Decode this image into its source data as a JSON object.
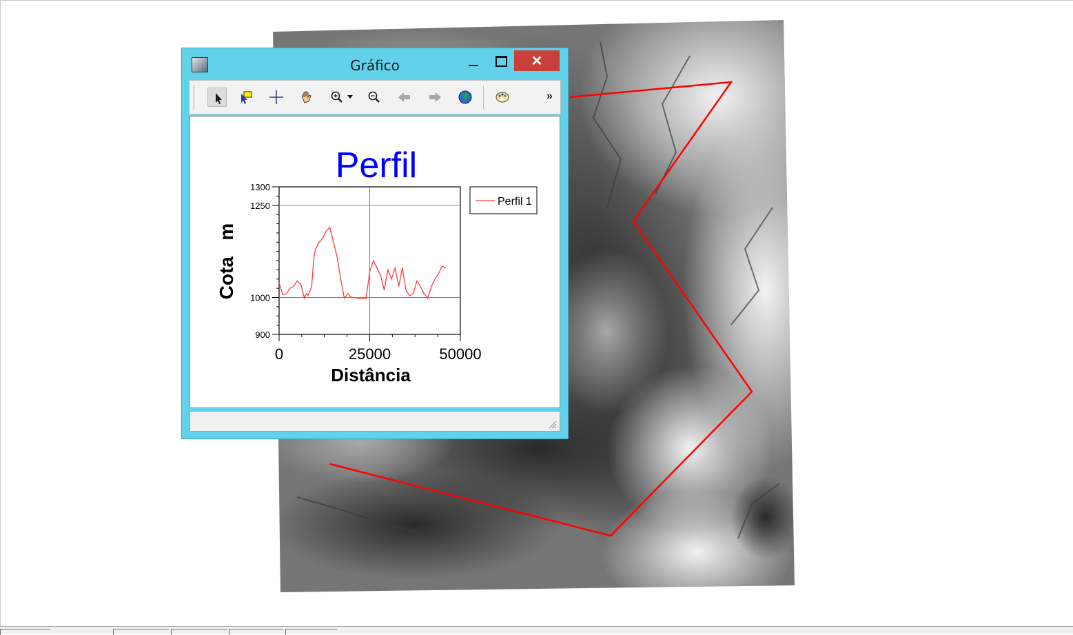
{
  "window": {
    "title": "Gráfico",
    "close_label": "✕",
    "overflow_label": "»"
  },
  "toolbar": {
    "tools": [
      "pointer-icon",
      "select-feature-icon",
      "crosshair-icon",
      "pan-hand-icon",
      "zoom-in-icon",
      "zoom-dropdown-icon",
      "zoom-out-icon",
      "back-arrow-icon",
      "forward-arrow-icon",
      "globe-icon",
      "palette-icon"
    ]
  },
  "colors": {
    "title_color": "#0000ff",
    "series_color": "#ff3b3b",
    "profile_line_color": "#ff0000",
    "window_frame": "#62d2ea",
    "close_button": "#c7403a"
  },
  "chart_data": {
    "type": "line",
    "title": "Perfil",
    "xlabel": "Distância",
    "ylabel": "Cota   m",
    "xlim": [
      0,
      50000
    ],
    "ylim": [
      900,
      1300
    ],
    "x_ticks": [
      "0",
      "25000",
      "50000"
    ],
    "y_ticks": [
      "1300",
      "1250",
      "1000",
      "900"
    ],
    "grid": "major lines at x=25000, y=1250, y=1000",
    "legend": "right",
    "series": [
      {
        "name": "Perfil 1",
        "x": [
          0,
          1000,
          2000,
          3000,
          4000,
          5000,
          6000,
          7000,
          7500,
          8000,
          9000,
          9500,
          10000,
          11000,
          12000,
          13000,
          14000,
          15000,
          16000,
          17000,
          18000,
          19000,
          20000,
          21000,
          22000,
          23000,
          24000,
          25000,
          26000,
          27000,
          28000,
          29000,
          30000,
          31000,
          32000,
          33000,
          34000,
          35000,
          36000,
          37000,
          38000,
          39000,
          40000,
          41000,
          42000,
          43000,
          44000,
          45000,
          46000
        ],
        "y": [
          1040,
          1008,
          1010,
          1025,
          1030,
          1045,
          1035,
          998,
          1010,
          1006,
          1030,
          1100,
          1130,
          1150,
          1160,
          1180,
          1190,
          1150,
          1110,
          1050,
          998,
          1010,
          1000,
          1000,
          998,
          998,
          998,
          1070,
          1100,
          1080,
          1060,
          1020,
          1075,
          1050,
          1080,
          1030,
          1080,
          1020,
          1005,
          1010,
          1045,
          1030,
          1010,
          998,
          1030,
          1050,
          1065,
          1085,
          1080
        ]
      }
    ]
  },
  "map": {
    "profile_path_vertices": "polyline from (478,672) to (885,776) to (1090,567) to (918,320) to (1060,118) to (825,140)"
  }
}
